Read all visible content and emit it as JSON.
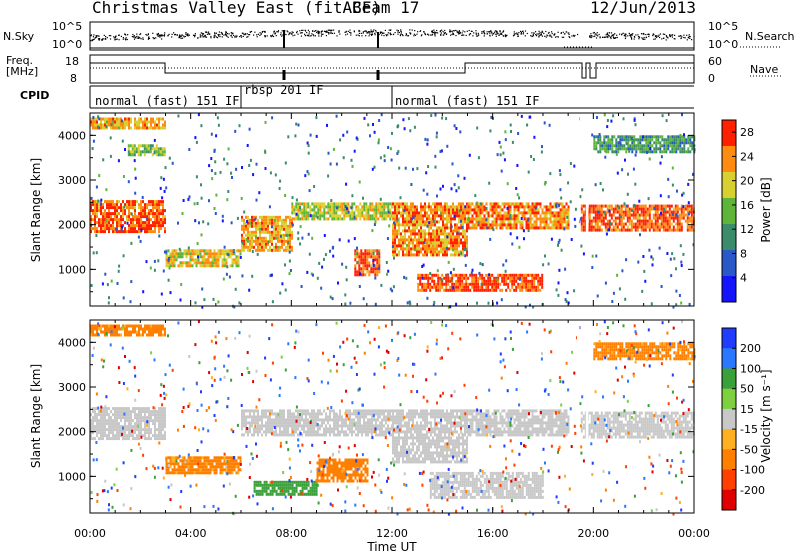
{
  "header": {
    "station": "Christmas Valley East (fitACF)",
    "beam": "Beam 17",
    "date": "12/Jun/2013"
  },
  "nsky_panel": {
    "label": "N.Sky",
    "right_label": "N.Search",
    "left_ticks": [
      "10^5",
      "10^0"
    ],
    "right_ticks": [
      "10^5",
      "10^0"
    ]
  },
  "freq_panel": {
    "label_line1": "Freq.",
    "label_line2": "[MHz]",
    "right_label": "Nave",
    "left_ticks": [
      "18",
      "8"
    ],
    "right_ticks": [
      "60",
      "0"
    ]
  },
  "cpid": {
    "label": "CPID",
    "modes": [
      {
        "name": "normal (fast) 151 IF",
        "start_hour": 0
      },
      {
        "name": "rbsp 201 IF",
        "start_hour": 6
      },
      {
        "name": "normal (fast) 151 IF",
        "start_hour": 12
      }
    ]
  },
  "axes": {
    "y_label": "Slant Range [km]",
    "x_label": "Time UT",
    "x_ticks": [
      "00:00",
      "04:00",
      "08:00",
      "12:00",
      "16:00",
      "20:00",
      "00:00"
    ],
    "y_ticks": [
      "1000",
      "2000",
      "3000",
      "4000"
    ]
  },
  "power_colorbar": {
    "label": "Power [dB]",
    "ticks": [
      "4",
      "8",
      "12",
      "16",
      "20",
      "24",
      "28"
    ],
    "colors": [
      "#1414ff",
      "#2a58c8",
      "#3b8c6a",
      "#5fb43a",
      "#d8d030",
      "#ff8c10",
      "#ff2000"
    ]
  },
  "velocity_colorbar": {
    "label": "Velocity [m s⁻¹]",
    "ticks": [
      "200",
      "100",
      "50",
      "15",
      "-15",
      "-50",
      "-100",
      "-200"
    ],
    "colors": [
      "#1f3cff",
      "#2a78ff",
      "#3aa03a",
      "#7fd040",
      "#c8c8c8",
      "#ffb020",
      "#ff8000",
      "#ff4000",
      "#e00000"
    ]
  },
  "chart_data": [
    {
      "type": "heatmap",
      "title": "Power",
      "xlabel": "Time UT",
      "ylabel": "Slant Range [km]",
      "xlim": [
        0,
        24
      ],
      "ylim": [
        180,
        4500
      ],
      "colorbar_label": "Power [dB]",
      "clim": [
        0,
        30
      ],
      "bands": [
        {
          "t": [
            0.0,
            3.0
          ],
          "r": [
            4150,
            4400
          ],
          "v": 22
        },
        {
          "t": [
            1.5,
            3.0
          ],
          "r": [
            3550,
            3800
          ],
          "v": 16
        },
        {
          "t": [
            0.0,
            3.0
          ],
          "r": [
            1850,
            2550
          ],
          "v": 26
        },
        {
          "t": [
            3.0,
            6.0
          ],
          "r": [
            1050,
            1450
          ],
          "v": 20
        },
        {
          "t": [
            6.0,
            8.0
          ],
          "r": [
            1450,
            2200
          ],
          "v": 22
        },
        {
          "t": [
            8.0,
            12.0
          ],
          "r": [
            2150,
            2500
          ],
          "v": 18
        },
        {
          "t": [
            10.5,
            11.5
          ],
          "r": [
            900,
            1450
          ],
          "v": 26
        },
        {
          "t": [
            12.0,
            15.0
          ],
          "r": [
            1350,
            2500
          ],
          "v": 24
        },
        {
          "t": [
            13.0,
            18.0
          ],
          "r": [
            500,
            900
          ],
          "v": 27
        },
        {
          "t": [
            15.0,
            19.0
          ],
          "r": [
            1950,
            2500
          ],
          "v": 24
        },
        {
          "t": [
            19.5,
            24.0
          ],
          "r": [
            1900,
            2450
          ],
          "v": 26
        },
        {
          "t": [
            20.0,
            24.0
          ],
          "r": [
            3600,
            4000
          ],
          "v": 12
        }
      ]
    },
    {
      "type": "heatmap",
      "title": "Velocity",
      "xlabel": "Time UT",
      "ylabel": "Slant Range [km]",
      "xlim": [
        0,
        24
      ],
      "ylim": [
        180,
        4500
      ],
      "colorbar_label": "Velocity [m s⁻¹]",
      "clim": [
        -200,
        200
      ],
      "bands": [
        {
          "t": [
            0.0,
            3.0
          ],
          "r": [
            4150,
            4400
          ],
          "v": -40
        },
        {
          "t": [
            0.0,
            3.0
          ],
          "r": [
            1850,
            2550
          ],
          "v": 0
        },
        {
          "t": [
            3.0,
            6.0
          ],
          "r": [
            1050,
            1450
          ],
          "v": -40
        },
        {
          "t": [
            6.5,
            9.0
          ],
          "r": [
            600,
            900
          ],
          "v": 60
        },
        {
          "t": [
            9.0,
            11.0
          ],
          "r": [
            900,
            1400
          ],
          "v": -50
        },
        {
          "t": [
            6.0,
            12.0
          ],
          "r": [
            1900,
            2500
          ],
          "v": 0
        },
        {
          "t": [
            12.0,
            15.0
          ],
          "r": [
            1350,
            2500
          ],
          "v": 0
        },
        {
          "t": [
            13.5,
            18.0
          ],
          "r": [
            500,
            1100
          ],
          "v": 0
        },
        {
          "t": [
            15.0,
            19.0
          ],
          "r": [
            1950,
            2500
          ],
          "v": 0
        },
        {
          "t": [
            19.5,
            24.0
          ],
          "r": [
            1900,
            2450
          ],
          "v": 0
        },
        {
          "t": [
            20.0,
            24.0
          ],
          "r": [
            3600,
            4000
          ],
          "v": -40
        }
      ]
    }
  ]
}
